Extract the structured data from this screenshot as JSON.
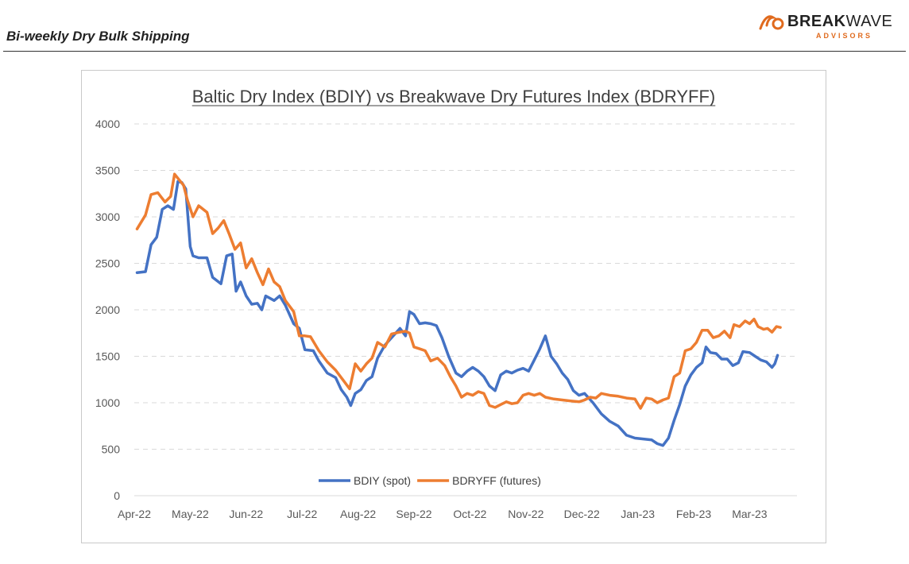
{
  "header": {
    "title": "Bi-weekly Dry Bulk Shipping",
    "logo_word_bold": "BREAK",
    "logo_word_regular": "WAVE",
    "logo_sub": "ADVISORS"
  },
  "colors": {
    "bdiy": "#4472c4",
    "bdryff": "#ed7d31",
    "logo_accent": "#e06a1d"
  },
  "chart_data": {
    "type": "line",
    "title": "Baltic Dry Index (BDIY) vs Breakwave Dry Futures Index (BDRYFF)",
    "xlabel": "",
    "ylabel": "",
    "ylim": [
      0,
      4000
    ],
    "yticks": [
      0,
      500,
      1000,
      1500,
      2000,
      2500,
      3000,
      3500,
      4000
    ],
    "xlim": [
      0,
      11.85
    ],
    "xticks": [
      "Apr-22",
      "May-22",
      "Jun-22",
      "Jul-22",
      "Aug-22",
      "Sep-22",
      "Oct-22",
      "Nov-22",
      "Dec-22",
      "Jan-23",
      "Feb-23",
      "Mar-23"
    ],
    "grid": "horizontal-dashed",
    "legend": "bottom-center",
    "series": [
      {
        "name": "BDIY (spot)",
        "color": "#4472c4",
        "points": [
          [
            0.05,
            2400
          ],
          [
            0.2,
            2410
          ],
          [
            0.3,
            2700
          ],
          [
            0.4,
            2780
          ],
          [
            0.5,
            3080
          ],
          [
            0.6,
            3120
          ],
          [
            0.7,
            3080
          ],
          [
            0.78,
            3380
          ],
          [
            0.85,
            3370
          ],
          [
            0.92,
            3300
          ],
          [
            1.0,
            2680
          ],
          [
            1.05,
            2580
          ],
          [
            1.15,
            2560
          ],
          [
            1.3,
            2560
          ],
          [
            1.4,
            2350
          ],
          [
            1.55,
            2280
          ],
          [
            1.65,
            2580
          ],
          [
            1.75,
            2600
          ],
          [
            1.82,
            2200
          ],
          [
            1.9,
            2300
          ],
          [
            2.0,
            2150
          ],
          [
            2.1,
            2060
          ],
          [
            2.2,
            2070
          ],
          [
            2.28,
            2000
          ],
          [
            2.35,
            2150
          ],
          [
            2.5,
            2100
          ],
          [
            2.6,
            2150
          ],
          [
            2.7,
            2050
          ],
          [
            2.85,
            1850
          ],
          [
            2.95,
            1800
          ],
          [
            3.05,
            1570
          ],
          [
            3.2,
            1560
          ],
          [
            3.3,
            1450
          ],
          [
            3.45,
            1320
          ],
          [
            3.6,
            1270
          ],
          [
            3.7,
            1140
          ],
          [
            3.8,
            1060
          ],
          [
            3.87,
            970
          ],
          [
            3.95,
            1100
          ],
          [
            4.05,
            1140
          ],
          [
            4.15,
            1240
          ],
          [
            4.25,
            1280
          ],
          [
            4.35,
            1480
          ],
          [
            4.48,
            1620
          ],
          [
            4.6,
            1700
          ],
          [
            4.75,
            1800
          ],
          [
            4.85,
            1720
          ],
          [
            4.92,
            1980
          ],
          [
            5.0,
            1950
          ],
          [
            5.1,
            1850
          ],
          [
            5.2,
            1860
          ],
          [
            5.3,
            1850
          ],
          [
            5.4,
            1830
          ],
          [
            5.5,
            1700
          ],
          [
            5.62,
            1500
          ],
          [
            5.75,
            1320
          ],
          [
            5.85,
            1280
          ],
          [
            5.95,
            1340
          ],
          [
            6.05,
            1380
          ],
          [
            6.15,
            1340
          ],
          [
            6.25,
            1280
          ],
          [
            6.35,
            1180
          ],
          [
            6.45,
            1130
          ],
          [
            6.55,
            1300
          ],
          [
            6.65,
            1340
          ],
          [
            6.75,
            1320
          ],
          [
            6.85,
            1350
          ],
          [
            6.95,
            1370
          ],
          [
            7.05,
            1340
          ],
          [
            7.15,
            1460
          ],
          [
            7.25,
            1580
          ],
          [
            7.35,
            1720
          ],
          [
            7.45,
            1500
          ],
          [
            7.55,
            1420
          ],
          [
            7.65,
            1320
          ],
          [
            7.75,
            1250
          ],
          [
            7.85,
            1130
          ],
          [
            7.95,
            1080
          ],
          [
            8.05,
            1100
          ],
          [
            8.2,
            1000
          ],
          [
            8.35,
            880
          ],
          [
            8.5,
            800
          ],
          [
            8.65,
            750
          ],
          [
            8.8,
            650
          ],
          [
            8.95,
            620
          ],
          [
            9.1,
            610
          ],
          [
            9.25,
            600
          ],
          [
            9.35,
            560
          ],
          [
            9.45,
            540
          ],
          [
            9.55,
            620
          ],
          [
            9.65,
            810
          ],
          [
            9.75,
            980
          ],
          [
            9.85,
            1180
          ],
          [
            9.95,
            1300
          ],
          [
            10.05,
            1380
          ],
          [
            10.15,
            1430
          ],
          [
            10.22,
            1600
          ],
          [
            10.3,
            1540
          ],
          [
            10.4,
            1530
          ],
          [
            10.5,
            1470
          ],
          [
            10.6,
            1470
          ],
          [
            10.7,
            1400
          ],
          [
            10.8,
            1430
          ],
          [
            10.88,
            1550
          ],
          [
            11.0,
            1540
          ],
          [
            11.1,
            1500
          ],
          [
            11.2,
            1460
          ],
          [
            11.3,
            1440
          ],
          [
            11.4,
            1380
          ],
          [
            11.45,
            1420
          ],
          [
            11.5,
            1510
          ]
        ]
      },
      {
        "name": "BDRYFF (futures)",
        "color": "#ed7d31",
        "points": [
          [
            0.05,
            2870
          ],
          [
            0.2,
            3020
          ],
          [
            0.3,
            3240
          ],
          [
            0.42,
            3260
          ],
          [
            0.55,
            3160
          ],
          [
            0.65,
            3220
          ],
          [
            0.72,
            3460
          ],
          [
            0.8,
            3400
          ],
          [
            0.88,
            3340
          ],
          [
            0.95,
            3180
          ],
          [
            1.05,
            3000
          ],
          [
            1.15,
            3120
          ],
          [
            1.3,
            3050
          ],
          [
            1.4,
            2820
          ],
          [
            1.5,
            2880
          ],
          [
            1.6,
            2960
          ],
          [
            1.7,
            2810
          ],
          [
            1.8,
            2650
          ],
          [
            1.9,
            2720
          ],
          [
            2.0,
            2450
          ],
          [
            2.1,
            2550
          ],
          [
            2.2,
            2400
          ],
          [
            2.3,
            2270
          ],
          [
            2.4,
            2440
          ],
          [
            2.5,
            2300
          ],
          [
            2.6,
            2250
          ],
          [
            2.7,
            2100
          ],
          [
            2.85,
            1980
          ],
          [
            2.95,
            1720
          ],
          [
            3.05,
            1720
          ],
          [
            3.15,
            1710
          ],
          [
            3.3,
            1560
          ],
          [
            3.45,
            1440
          ],
          [
            3.6,
            1350
          ],
          [
            3.75,
            1230
          ],
          [
            3.85,
            1150
          ],
          [
            3.95,
            1420
          ],
          [
            4.05,
            1340
          ],
          [
            4.15,
            1420
          ],
          [
            4.25,
            1480
          ],
          [
            4.35,
            1650
          ],
          [
            4.48,
            1600
          ],
          [
            4.6,
            1740
          ],
          [
            4.75,
            1760
          ],
          [
            4.85,
            1770
          ],
          [
            4.92,
            1750
          ],
          [
            5.0,
            1600
          ],
          [
            5.1,
            1580
          ],
          [
            5.2,
            1560
          ],
          [
            5.3,
            1450
          ],
          [
            5.42,
            1480
          ],
          [
            5.55,
            1400
          ],
          [
            5.65,
            1280
          ],
          [
            5.75,
            1180
          ],
          [
            5.85,
            1060
          ],
          [
            5.95,
            1100
          ],
          [
            6.05,
            1080
          ],
          [
            6.15,
            1120
          ],
          [
            6.25,
            1100
          ],
          [
            6.35,
            970
          ],
          [
            6.45,
            950
          ],
          [
            6.55,
            980
          ],
          [
            6.65,
            1010
          ],
          [
            6.75,
            990
          ],
          [
            6.85,
            1000
          ],
          [
            6.95,
            1080
          ],
          [
            7.05,
            1100
          ],
          [
            7.15,
            1080
          ],
          [
            7.25,
            1100
          ],
          [
            7.35,
            1060
          ],
          [
            7.5,
            1040
          ],
          [
            7.65,
            1030
          ],
          [
            7.8,
            1020
          ],
          [
            7.95,
            1010
          ],
          [
            8.05,
            1030
          ],
          [
            8.15,
            1060
          ],
          [
            8.25,
            1050
          ],
          [
            8.35,
            1100
          ],
          [
            8.5,
            1080
          ],
          [
            8.65,
            1070
          ],
          [
            8.8,
            1050
          ],
          [
            8.95,
            1040
          ],
          [
            9.05,
            940
          ],
          [
            9.15,
            1050
          ],
          [
            9.25,
            1040
          ],
          [
            9.35,
            1000
          ],
          [
            9.45,
            1030
          ],
          [
            9.55,
            1050
          ],
          [
            9.65,
            1280
          ],
          [
            9.75,
            1320
          ],
          [
            9.85,
            1560
          ],
          [
            9.95,
            1580
          ],
          [
            10.05,
            1650
          ],
          [
            10.15,
            1780
          ],
          [
            10.25,
            1780
          ],
          [
            10.35,
            1700
          ],
          [
            10.45,
            1720
          ],
          [
            10.55,
            1770
          ],
          [
            10.65,
            1700
          ],
          [
            10.72,
            1840
          ],
          [
            10.82,
            1820
          ],
          [
            10.92,
            1880
          ],
          [
            11.0,
            1850
          ],
          [
            11.08,
            1900
          ],
          [
            11.15,
            1820
          ],
          [
            11.25,
            1790
          ],
          [
            11.32,
            1800
          ],
          [
            11.4,
            1760
          ],
          [
            11.48,
            1820
          ],
          [
            11.55,
            1810
          ]
        ]
      }
    ]
  }
}
